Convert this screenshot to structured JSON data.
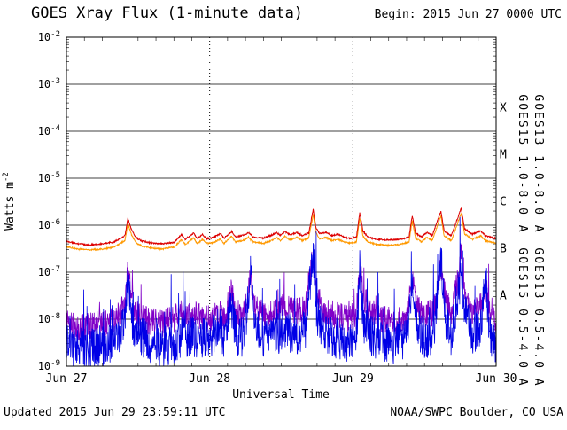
{
  "header": {
    "title": "GOES Xray Flux (1-minute data)",
    "begin_label": "Begin: 2015 Jun 27 0000 UTC"
  },
  "footer": {
    "updated": "Updated 2015 Jun 29 23:59:11 UTC",
    "source": "NOAA/SWPC Boulder, CO USA"
  },
  "chart_data": {
    "type": "line",
    "title": "GOES Xray Flux (1-minute data)",
    "xlabel": "Universal Time",
    "ylabel": "Watts m",
    "ylabel_exp": "-2",
    "x_axis_scale": "linear-hours",
    "y_axis_scale": "log",
    "xlim_hours": [
      0,
      72
    ],
    "ylim": [
      1e-09,
      0.01
    ],
    "y_ticks_exponents": [
      -2,
      -3,
      -4,
      -5,
      -6,
      -7,
      -8,
      -9
    ],
    "x_ticks": [
      {
        "hour": 0,
        "label": "Jun 27"
      },
      {
        "hour": 24,
        "label": "Jun 28"
      },
      {
        "hour": 48,
        "label": "Jun 29"
      },
      {
        "hour": 72,
        "label": "Jun 30"
      }
    ],
    "grid": {
      "h_lines_at_decades": true,
      "v_dotted_hours": [
        24,
        48
      ],
      "x_minor_step_hours": 3
    },
    "flux_classes": [
      {
        "label": "X",
        "exponent": -3.5
      },
      {
        "label": "M",
        "exponent": -4.5
      },
      {
        "label": "C",
        "exponent": -5.5
      },
      {
        "label": "B",
        "exponent": -6.5
      },
      {
        "label": "A",
        "exponent": -7.5
      }
    ],
    "right_axis_labels": [
      {
        "text": "GOES15 1.0-8.0 A",
        "color": "#dd0000"
      },
      {
        "text": "GOES13 1.0-8.0 A",
        "color": "#ff9900"
      },
      {
        "text": "GOES15 0.5-4.0 A",
        "color": "#8000c8"
      },
      {
        "text": "GOES13 0.5-4.0 A",
        "color": "#0000e6"
      }
    ],
    "series": [
      {
        "id": "goes13-long",
        "name": "GOES13 1.0-8.0 A",
        "color": "#ff9900",
        "width": 1,
        "noise_dex": 0.015,
        "spike_prob": 0,
        "spike_dex": 0,
        "keypoints": [
          [
            0,
            3.5e-07
          ],
          [
            2,
            3.1e-07
          ],
          [
            4,
            3e-07
          ],
          [
            6,
            3.1e-07
          ],
          [
            8,
            3.4e-07
          ],
          [
            9.8,
            4.7e-07
          ],
          [
            10.3,
            1.1e-06
          ],
          [
            10.9,
            6.2e-07
          ],
          [
            11.6,
            4.3e-07
          ],
          [
            12.6,
            3.6e-07
          ],
          [
            14,
            3.3e-07
          ],
          [
            16,
            3.1e-07
          ],
          [
            18,
            3.4e-07
          ],
          [
            19.3,
            4.9e-07
          ],
          [
            19.9,
            3.9e-07
          ],
          [
            21.3,
            5.3e-07
          ],
          [
            21.9,
            4.1e-07
          ],
          [
            22.8,
            4.9e-07
          ],
          [
            23.5,
            4.1e-07
          ],
          [
            24.5,
            4.2e-07
          ],
          [
            25.8,
            5.1e-07
          ],
          [
            26.4,
            4.1e-07
          ],
          [
            27.7,
            5.8e-07
          ],
          [
            28.3,
            4.4e-07
          ],
          [
            29.8,
            4.8e-07
          ],
          [
            30.5,
            5.5e-07
          ],
          [
            31.3,
            4.4e-07
          ],
          [
            33,
            4.1e-07
          ],
          [
            34.5,
            4.8e-07
          ],
          [
            35.2,
            5.5e-07
          ],
          [
            35.9,
            4.7e-07
          ],
          [
            36.6,
            5.8e-07
          ],
          [
            37.5,
            4.8e-07
          ],
          [
            38.6,
            5.5e-07
          ],
          [
            39.5,
            4.7e-07
          ],
          [
            40.6,
            5.3e-07
          ],
          [
            41.35,
            1.7e-06
          ],
          [
            41.8,
            7e-07
          ],
          [
            42.4,
            5.1e-07
          ],
          [
            43.5,
            5.5e-07
          ],
          [
            44.5,
            4.7e-07
          ],
          [
            45.5,
            5e-07
          ],
          [
            46.5,
            4.4e-07
          ],
          [
            47.5,
            4.1e-07
          ],
          [
            48.6,
            4.4e-07
          ],
          [
            49.15,
            1.4e-06
          ],
          [
            49.7,
            5.8e-07
          ],
          [
            50.5,
            4.4e-07
          ],
          [
            52,
            3.9e-07
          ],
          [
            54,
            3.7e-07
          ],
          [
            56,
            3.9e-07
          ],
          [
            57.4,
            4.4e-07
          ],
          [
            57.95,
            1.25e-06
          ],
          [
            58.5,
            5.3e-07
          ],
          [
            59.5,
            4.4e-07
          ],
          [
            60.4,
            5.5e-07
          ],
          [
            61.3,
            4.7e-07
          ],
          [
            62.75,
            1.6e-06
          ],
          [
            63.3,
            5.8e-07
          ],
          [
            64.5,
            4.7e-07
          ],
          [
            66.15,
            1.8e-06
          ],
          [
            66.7,
            6.6e-07
          ],
          [
            68,
            5e-07
          ],
          [
            69.4,
            5.9e-07
          ],
          [
            70.2,
            4.7e-07
          ],
          [
            71,
            4.4e-07
          ],
          [
            72,
            4.1e-07
          ]
        ]
      },
      {
        "id": "goes15-long",
        "name": "GOES15 1.0-8.0 A",
        "color": "#dd0000",
        "width": 1,
        "noise_dex": 0.015,
        "spike_prob": 0,
        "spike_dex": 0,
        "keypoints": [
          [
            0,
            4.5e-07
          ],
          [
            2,
            4e-07
          ],
          [
            4,
            3.8e-07
          ],
          [
            6,
            4e-07
          ],
          [
            8,
            4.4e-07
          ],
          [
            9.8,
            6e-07
          ],
          [
            10.3,
            1.4e-06
          ],
          [
            10.9,
            8e-07
          ],
          [
            11.6,
            5.5e-07
          ],
          [
            12.6,
            4.6e-07
          ],
          [
            14,
            4.2e-07
          ],
          [
            16,
            4e-07
          ],
          [
            18,
            4.3e-07
          ],
          [
            19.3,
            6.3e-07
          ],
          [
            19.9,
            5e-07
          ],
          [
            21.3,
            6.8e-07
          ],
          [
            21.9,
            5.2e-07
          ],
          [
            22.8,
            6.3e-07
          ],
          [
            23.5,
            5.2e-07
          ],
          [
            24.5,
            5.4e-07
          ],
          [
            25.8,
            6.6e-07
          ],
          [
            26.4,
            5.3e-07
          ],
          [
            27.7,
            7.4e-07
          ],
          [
            28.3,
            5.6e-07
          ],
          [
            29.8,
            6.2e-07
          ],
          [
            30.5,
            7e-07
          ],
          [
            31.3,
            5.6e-07
          ],
          [
            33,
            5.3e-07
          ],
          [
            34.5,
            6.2e-07
          ],
          [
            35.2,
            7e-07
          ],
          [
            35.9,
            6e-07
          ],
          [
            36.6,
            7.4e-07
          ],
          [
            37.5,
            6.2e-07
          ],
          [
            38.6,
            7e-07
          ],
          [
            39.5,
            6e-07
          ],
          [
            40.6,
            6.8e-07
          ],
          [
            41.35,
            2.2e-06
          ],
          [
            41.8,
            9e-07
          ],
          [
            42.4,
            6.6e-07
          ],
          [
            43.5,
            7e-07
          ],
          [
            44.5,
            6e-07
          ],
          [
            45.5,
            6.4e-07
          ],
          [
            46.5,
            5.6e-07
          ],
          [
            47.5,
            5.2e-07
          ],
          [
            48.6,
            5.6e-07
          ],
          [
            49.15,
            1.8e-06
          ],
          [
            49.7,
            7.5e-07
          ],
          [
            50.5,
            5.6e-07
          ],
          [
            52,
            5e-07
          ],
          [
            54,
            4.8e-07
          ],
          [
            56,
            5e-07
          ],
          [
            57.4,
            5.6e-07
          ],
          [
            57.95,
            1.6e-06
          ],
          [
            58.5,
            6.8e-07
          ],
          [
            59.5,
            5.6e-07
          ],
          [
            60.4,
            7e-07
          ],
          [
            61.3,
            6e-07
          ],
          [
            62.75,
            2e-06
          ],
          [
            63.3,
            7.5e-07
          ],
          [
            64.5,
            6e-07
          ],
          [
            66.15,
            2.3e-06
          ],
          [
            66.7,
            8.5e-07
          ],
          [
            68,
            6.4e-07
          ],
          [
            69.4,
            7.6e-07
          ],
          [
            70.2,
            6e-07
          ],
          [
            71,
            5.6e-07
          ],
          [
            72,
            5.2e-07
          ]
        ]
      },
      {
        "id": "goes15-short",
        "name": "GOES15 0.5-4.0 A",
        "color": "#8000c8",
        "width": 0.8,
        "noise_dex": 0.3,
        "spike_prob": 0.03,
        "spike_dex": 0.8,
        "keypoints": [
          [
            0,
            8e-09
          ],
          [
            2,
            7e-09
          ],
          [
            4,
            7e-09
          ],
          [
            6,
            8e-09
          ],
          [
            8,
            9e-09
          ],
          [
            9.8,
            2e-08
          ],
          [
            10.3,
            1.2e-07
          ],
          [
            10.9,
            3e-08
          ],
          [
            11.6,
            1.4e-08
          ],
          [
            12.6,
            1.1e-08
          ],
          [
            14,
            9e-09
          ],
          [
            16,
            8e-09
          ],
          [
            18,
            1e-08
          ],
          [
            19.3,
            1.4e-08
          ],
          [
            20,
            1.1e-08
          ],
          [
            21.3,
            1.4e-08
          ],
          [
            22,
            1.1e-08
          ],
          [
            23,
            1.2e-08
          ],
          [
            24,
            1e-08
          ],
          [
            25.8,
            1.3e-08
          ],
          [
            26.4,
            1e-08
          ],
          [
            27.7,
            4e-08
          ],
          [
            28.3,
            1.4e-08
          ],
          [
            29.8,
            1.2e-08
          ],
          [
            30.9,
            8e-08
          ],
          [
            31.5,
            1.8e-08
          ],
          [
            33,
            1.2e-08
          ],
          [
            35,
            1.4e-08
          ],
          [
            36.6,
            1.8e-08
          ],
          [
            38,
            1.4e-08
          ],
          [
            40,
            1.6e-08
          ],
          [
            41.35,
            2.5e-07
          ],
          [
            41.9,
            4e-08
          ],
          [
            43,
            1.5e-08
          ],
          [
            45,
            1.2e-08
          ],
          [
            47,
            1e-08
          ],
          [
            48.6,
            1.2e-08
          ],
          [
            49.15,
            1.5e-07
          ],
          [
            49.8,
            3e-08
          ],
          [
            51,
            1.4e-08
          ],
          [
            53,
            1e-08
          ],
          [
            55,
            9e-09
          ],
          [
            57,
            1.1e-08
          ],
          [
            57.95,
            8e-08
          ],
          [
            58.6,
            1.8e-08
          ],
          [
            60,
            1.2e-08
          ],
          [
            61.5,
            1.4e-08
          ],
          [
            62.75,
            1.5e-07
          ],
          [
            63.4,
            2.8e-08
          ],
          [
            64.5,
            1.4e-08
          ],
          [
            66.15,
            2e-07
          ],
          [
            66.8,
            3.5e-08
          ],
          [
            68,
            1.4e-08
          ],
          [
            69.4,
            1.8e-08
          ],
          [
            70.3,
            5e-08
          ],
          [
            70.8,
            1.4e-08
          ],
          [
            71.5,
            1.1e-08
          ],
          [
            72,
            1e-08
          ]
        ]
      },
      {
        "id": "goes13-short",
        "name": "GOES13 0.5-4.0 A",
        "color": "#0000e6",
        "width": 0.8,
        "noise_dex": 0.45,
        "spike_prob": 0.04,
        "spike_dex": 1.2,
        "keypoints": [
          [
            0,
            3e-09
          ],
          [
            2,
            2.6e-09
          ],
          [
            4,
            2.2e-09
          ],
          [
            6,
            2.5e-09
          ],
          [
            8,
            3e-09
          ],
          [
            9.8,
            8e-09
          ],
          [
            10.3,
            1e-07
          ],
          [
            10.9,
            1.2e-08
          ],
          [
            11.6,
            5e-09
          ],
          [
            12.6,
            4e-09
          ],
          [
            14,
            3e-09
          ],
          [
            16,
            2.6e-09
          ],
          [
            18,
            3e-09
          ],
          [
            19.3,
            4.5e-09
          ],
          [
            20,
            3.5e-09
          ],
          [
            21.3,
            4.5e-09
          ],
          [
            22,
            3.5e-09
          ],
          [
            23,
            4e-09
          ],
          [
            24,
            3.2e-09
          ],
          [
            25.5,
            8e-09
          ],
          [
            26.4,
            3.5e-09
          ],
          [
            27.7,
            2e-08
          ],
          [
            28.3,
            5e-09
          ],
          [
            29.8,
            4e-09
          ],
          [
            30.9,
            1.4e-07
          ],
          [
            31.5,
            7e-09
          ],
          [
            33,
            4e-09
          ],
          [
            35,
            4.5e-09
          ],
          [
            36.6,
            6e-09
          ],
          [
            38,
            4.5e-09
          ],
          [
            40,
            5.5e-09
          ],
          [
            41.35,
            2.8e-07
          ],
          [
            41.9,
            1.4e-08
          ],
          [
            43,
            5e-09
          ],
          [
            45,
            4e-09
          ],
          [
            47,
            3.5e-09
          ],
          [
            48.6,
            4e-09
          ],
          [
            49.15,
            1.2e-07
          ],
          [
            49.8,
            9e-09
          ],
          [
            51,
            4.5e-09
          ],
          [
            53,
            3.5e-09
          ],
          [
            55,
            3e-09
          ],
          [
            57,
            4e-09
          ],
          [
            57.95,
            6e-08
          ],
          [
            58.6,
            7e-09
          ],
          [
            60,
            4e-09
          ],
          [
            61.5,
            4.5e-09
          ],
          [
            62.75,
            2.2e-07
          ],
          [
            63.4,
            1.1e-08
          ],
          [
            64.5,
            4.5e-09
          ],
          [
            66.15,
            9e-08
          ],
          [
            66.8,
            1.3e-08
          ],
          [
            68,
            4.5e-09
          ],
          [
            69.4,
            6e-09
          ],
          [
            70.3,
            9e-08
          ],
          [
            70.8,
            6e-09
          ],
          [
            71.5,
            3.5e-09
          ],
          [
            72,
            3e-09
          ]
        ]
      }
    ]
  }
}
